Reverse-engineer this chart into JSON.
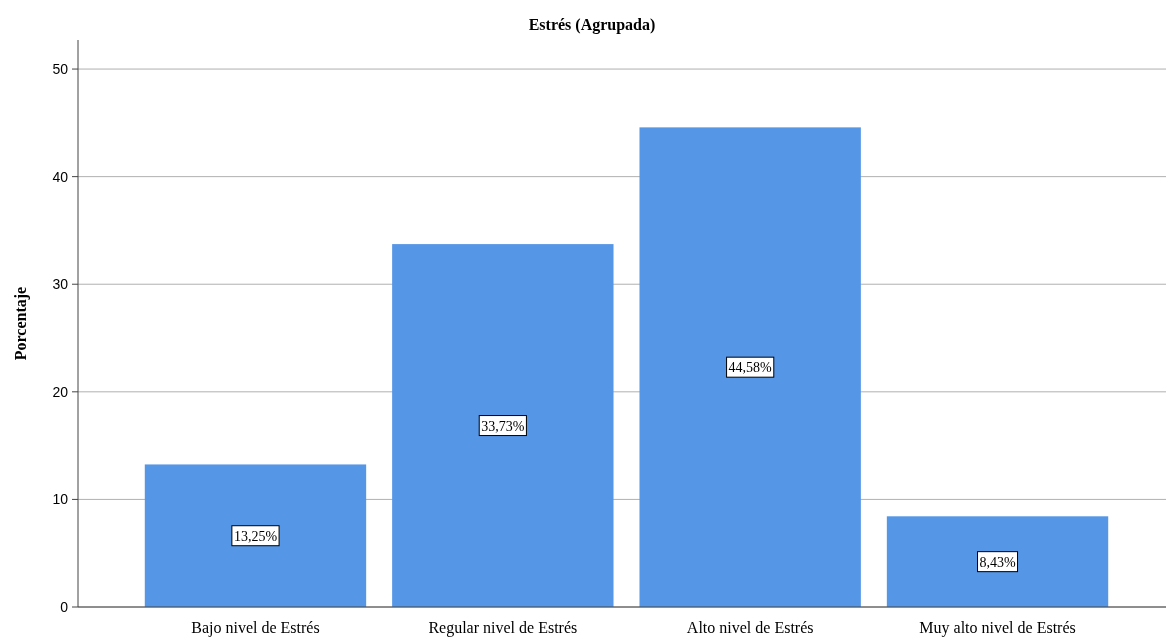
{
  "chart_data": {
    "type": "bar",
    "title": "Estrés (Agrupada)",
    "ylabel": "Porcentaje",
    "categories": [
      "Bajo nivel de Estrés",
      "Regular nivel de Estrés",
      "Alto nivel de Estrés",
      "Muy alto nivel de Estrés"
    ],
    "values": [
      13.25,
      33.73,
      44.58,
      8.43
    ],
    "value_labels": [
      "13,25%",
      "33,73%",
      "44,58%",
      "8,43%"
    ],
    "color": "#5596e6",
    "ylim": [
      0,
      52.7
    ],
    "yticks": [
      0,
      10,
      20,
      30,
      40,
      50
    ],
    "grid": "y"
  }
}
